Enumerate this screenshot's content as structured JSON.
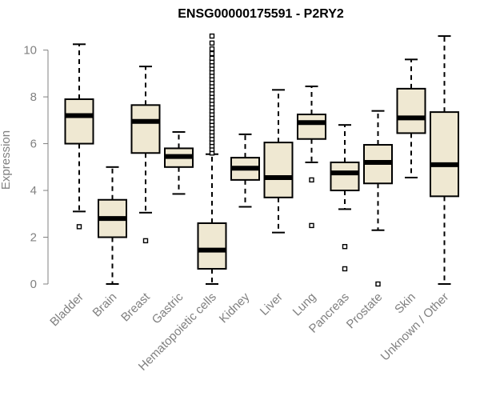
{
  "chart_data": {
    "type": "boxplot",
    "title": "ENSG00000175591 - P2RY2",
    "xlabel": "",
    "ylabel": "Expression",
    "ylim": [
      0,
      10.5
    ],
    "yticks": [
      0,
      2,
      4,
      6,
      8,
      10
    ],
    "grid": false,
    "box_fill": "#efe8d2",
    "categories": [
      "Bladder",
      "Brain",
      "Breast",
      "Gastric",
      "Hematopoietic cells",
      "Kidney",
      "Liver",
      "Lung",
      "Pancreas",
      "Prostate",
      "Skin",
      "Unknown / Other"
    ],
    "boxes": [
      {
        "name": "Bladder",
        "min": 3.1,
        "q1": 6.0,
        "median": 7.2,
        "q3": 7.9,
        "max": 10.25,
        "outliers": [
          2.45
        ]
      },
      {
        "name": "Brain",
        "min": 0.0,
        "q1": 2.0,
        "median": 2.8,
        "q3": 3.6,
        "max": 5.0,
        "outliers": []
      },
      {
        "name": "Breast",
        "min": 3.05,
        "q1": 5.6,
        "median": 6.95,
        "q3": 7.65,
        "max": 9.3,
        "outliers": [
          1.85
        ]
      },
      {
        "name": "Gastric",
        "min": 3.85,
        "q1": 5.0,
        "median": 5.45,
        "q3": 5.8,
        "max": 6.5,
        "outliers": []
      },
      {
        "name": "Hematopoietic cells",
        "min": 0.0,
        "q1": 0.65,
        "median": 1.45,
        "q3": 2.6,
        "max": 5.55,
        "outliers": [
          5.6,
          5.75,
          5.9,
          6.05,
          6.2,
          6.35,
          6.5,
          6.65,
          6.8,
          6.95,
          7.1,
          7.25,
          7.4,
          7.55,
          7.7,
          7.85,
          8.0,
          8.15,
          8.3,
          8.45,
          8.6,
          8.75,
          8.9,
          9.05,
          9.2,
          9.35,
          9.5,
          9.65,
          9.85,
          10.05,
          10.3,
          10.6
        ]
      },
      {
        "name": "Kidney",
        "min": 3.3,
        "q1": 4.45,
        "median": 4.95,
        "q3": 5.4,
        "max": 6.4,
        "outliers": []
      },
      {
        "name": "Liver",
        "min": 2.2,
        "q1": 3.7,
        "median": 4.55,
        "q3": 6.05,
        "max": 8.3,
        "outliers": []
      },
      {
        "name": "Lung",
        "min": 5.2,
        "q1": 6.2,
        "median": 6.9,
        "q3": 7.25,
        "max": 8.45,
        "outliers": [
          4.45,
          2.5
        ]
      },
      {
        "name": "Pancreas",
        "min": 3.2,
        "q1": 4.0,
        "median": 4.75,
        "q3": 5.2,
        "max": 6.8,
        "outliers": [
          1.6,
          0.65
        ]
      },
      {
        "name": "Prostate",
        "min": 2.3,
        "q1": 4.3,
        "median": 5.2,
        "q3": 5.95,
        "max": 7.4,
        "outliers": [
          0.0
        ]
      },
      {
        "name": "Skin",
        "min": 4.55,
        "q1": 6.45,
        "median": 7.1,
        "q3": 8.35,
        "max": 9.6,
        "outliers": []
      },
      {
        "name": "Unknown / Other",
        "min": 0.0,
        "q1": 3.75,
        "median": 5.1,
        "q3": 7.35,
        "max": 10.6,
        "outliers": []
      }
    ]
  }
}
